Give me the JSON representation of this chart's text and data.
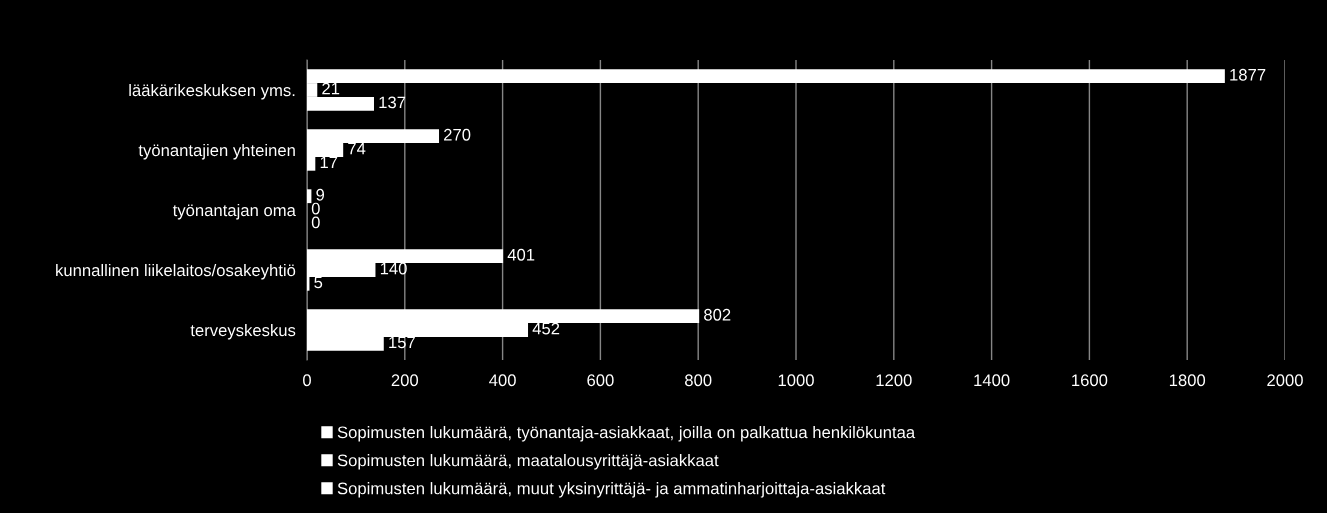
{
  "chart_data": {
    "type": "bar",
    "orientation": "horizontal",
    "categories": [
      "lääkärikeskuksen yms.",
      "työnantajien yhteinen",
      "työnantajan oma",
      "kunnallinen liikelaitos/osakeyhtiö",
      "terveyskeskus"
    ],
    "series": [
      {
        "name": "Sopimusten lukumäärä, työnantaja-asiakkaat, joilla on palkattua henkilökuntaa",
        "color": "#ffffff",
        "values": [
          1877,
          270,
          9,
          401,
          802
        ]
      },
      {
        "name": "Sopimusten lukumäärä, maatalousyrittäjä-asiakkaat",
        "color": "#ffffff",
        "values": [
          21,
          74,
          0,
          140,
          452
        ]
      },
      {
        "name": "Sopimusten lukumäärä, muut yksinyrittäjä- ja ammatinharjoittaja-asiakkaat",
        "color": "#ffffff",
        "values": [
          137,
          17,
          0,
          5,
          157
        ]
      }
    ],
    "xlim": [
      0,
      2000
    ],
    "xticks": [
      0,
      200,
      400,
      600,
      800,
      1000,
      1200,
      1400,
      1600,
      1800,
      2000
    ],
    "grid": "x",
    "legend": "bottom",
    "data_labels": true
  }
}
